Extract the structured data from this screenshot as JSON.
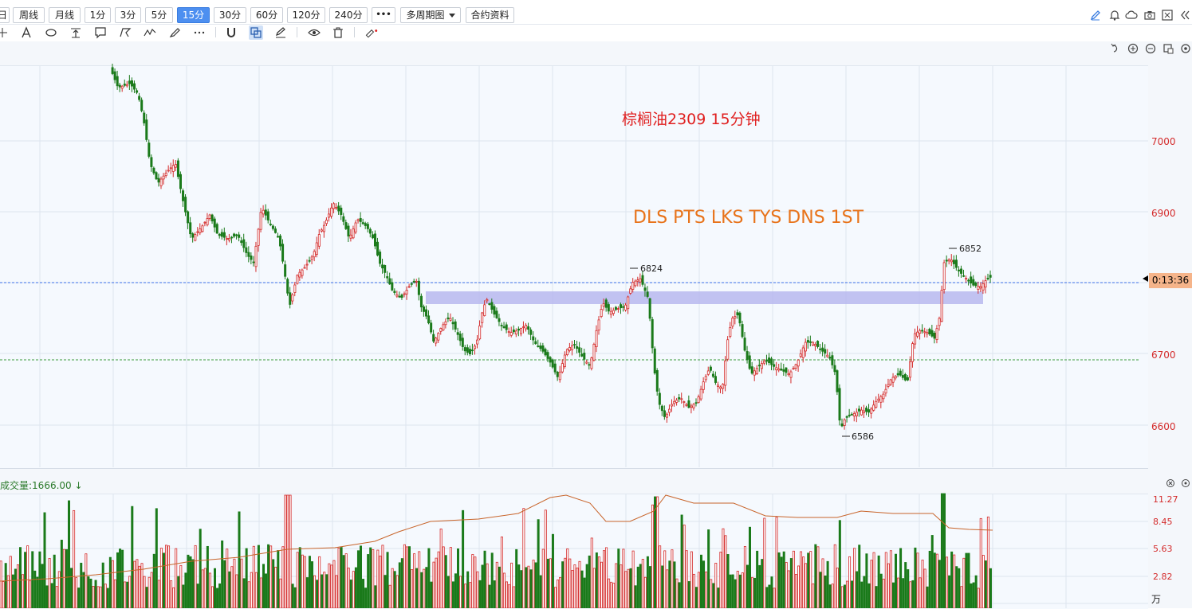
{
  "toolbar": {
    "periods": [
      "日",
      "周线",
      "月线",
      "1分",
      "3分",
      "5分",
      "15分",
      "30分",
      "60分",
      "120分",
      "240分"
    ],
    "active_period": "15分",
    "more_label": "•••",
    "multi_period_label": "多周期图",
    "contract_info_label": "合约资料"
  },
  "chart": {
    "title_annotation": "棕榈油2309 15分钟",
    "pattern_annotation": "DLS PTS LKS TYS DNS 1ST",
    "current_price_timer": "0:13:36",
    "y_ticks": [
      "7000",
      "6900",
      "6700",
      "6600"
    ],
    "price_labels": {
      "high_left": "6824",
      "high_right": "6852",
      "low": "6586"
    }
  },
  "volume": {
    "label": "成交量:",
    "value": "1666.00",
    "arrow": "↓",
    "y_ticks": [
      "11.27",
      "8.45",
      "5.63",
      "2.82"
    ],
    "unit": "万"
  },
  "colors": {
    "up": "#d42b2b",
    "down": "#1a7a1a",
    "accent": "#4d8ff0",
    "zone": "#b7b8ee"
  }
}
